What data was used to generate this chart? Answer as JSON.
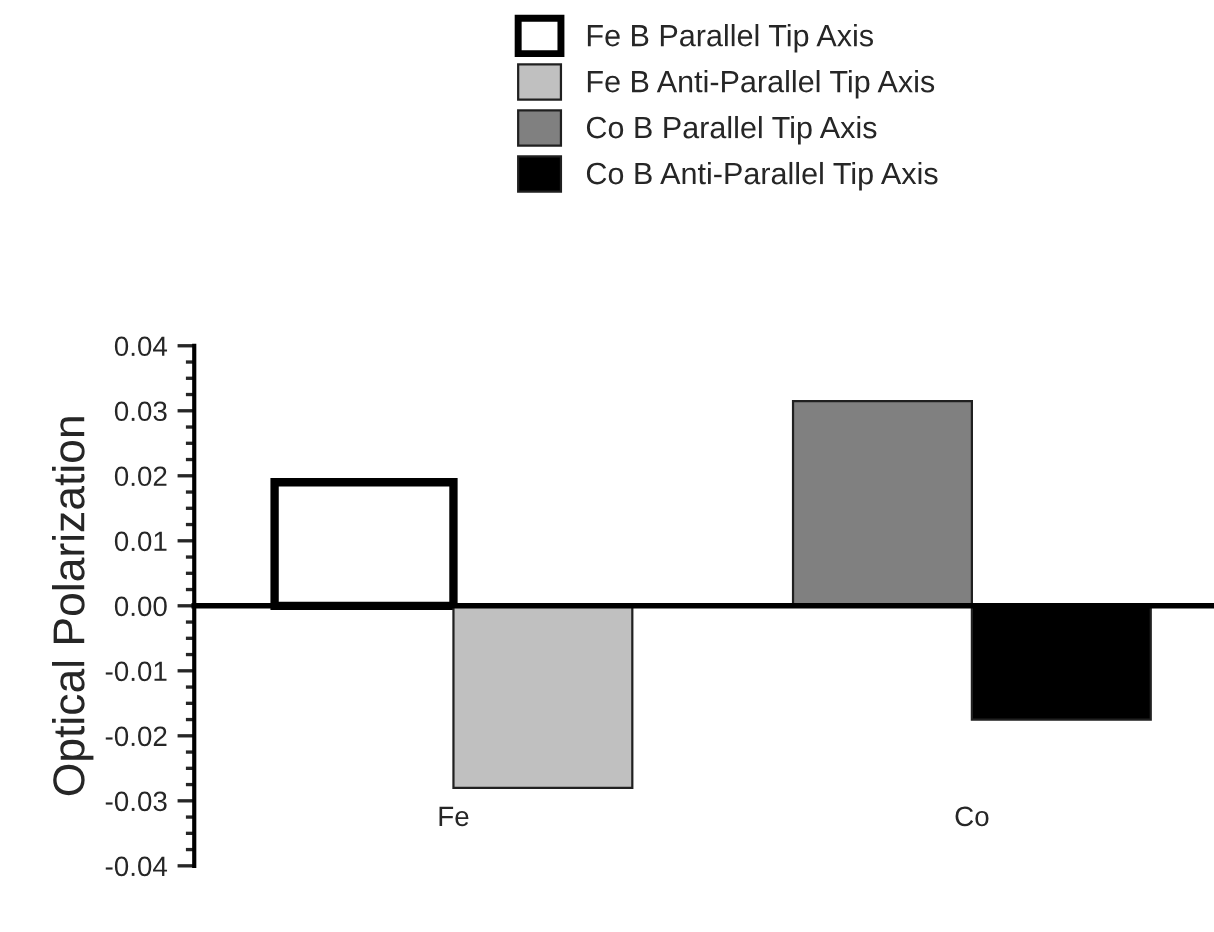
{
  "chart_data": {
    "type": "bar",
    "ylabel": "Optical Polarization",
    "categories": [
      "Fe",
      "Co"
    ],
    "series": [
      {
        "name": "Fe B Parallel Tip Axis",
        "color": "#ffffff",
        "values": [
          0.019,
          null
        ]
      },
      {
        "name": "Fe B Anti-Parallel Tip Axis",
        "color": "#c0c0c0",
        "values": [
          -0.028,
          null
        ]
      },
      {
        "name": "Co B Parallel Tip Axis",
        "color": "#808080",
        "values": [
          null,
          0.0315
        ]
      },
      {
        "name": "Co B Anti-Parallel Tip Axis",
        "color": "#000000",
        "values": [
          null,
          -0.0175
        ]
      }
    ],
    "ylim": [
      -0.04,
      0.04
    ],
    "yticks": [
      {
        "value": -0.04,
        "label": "-0.04"
      },
      {
        "value": -0.03,
        "label": "-0.03"
      },
      {
        "value": -0.02,
        "label": "-0.02"
      },
      {
        "value": -0.01,
        "label": "-0.01"
      },
      {
        "value": 0,
        "label": "0.00"
      },
      {
        "value": 0.01,
        "label": "0.01"
      },
      {
        "value": 0.02,
        "label": "0.02"
      },
      {
        "value": 0.03,
        "label": "0.03"
      },
      {
        "value": 0.04,
        "label": "0.04"
      }
    ],
    "legend": "top"
  }
}
